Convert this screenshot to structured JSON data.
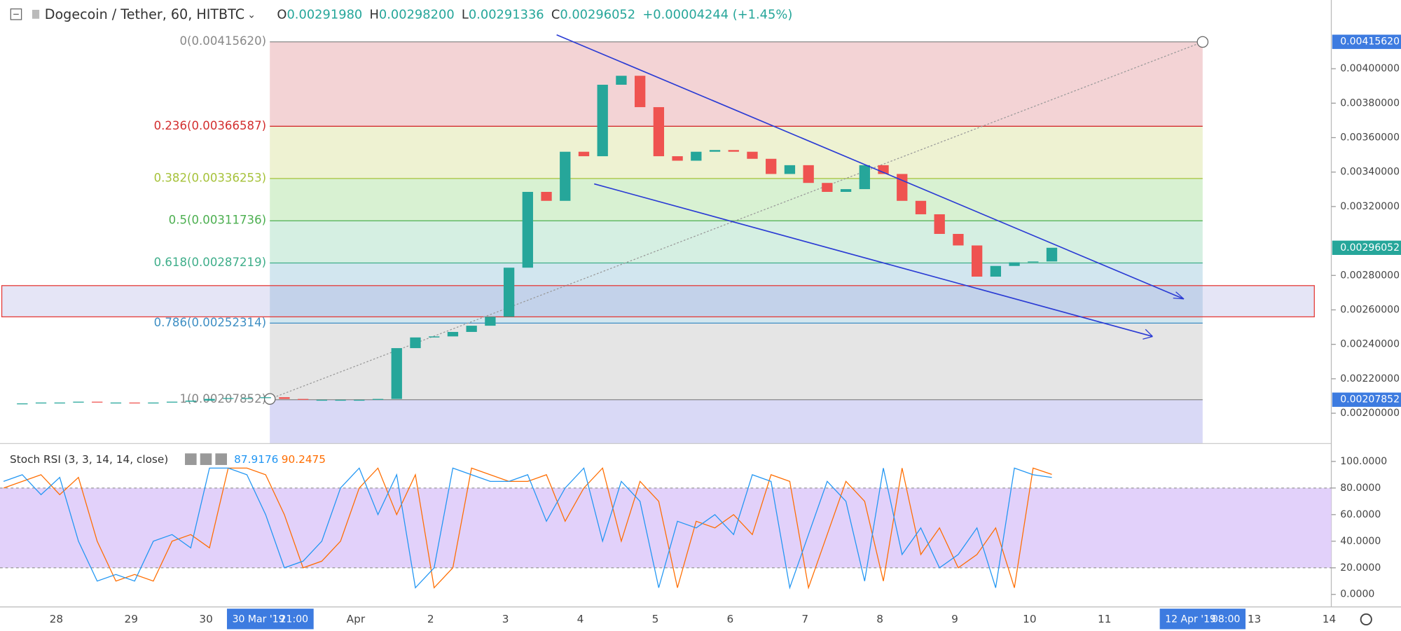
{
  "header": {
    "symbol": "Dogecoin / Tether, 60, HITBTC",
    "ohlc": [
      {
        "label": "O",
        "value": "0.00291980"
      },
      {
        "label": "H",
        "value": "0.00298200"
      },
      {
        "label": "L",
        "value": "0.00291336"
      },
      {
        "label": "C",
        "value": "0.00296052"
      }
    ],
    "change": "+0.00004244 (+1.45%)"
  },
  "price_axis": {
    "ticks": [
      {
        "value": 0.004,
        "label": "0.00400000"
      },
      {
        "value": 0.0038,
        "label": "0.00380000"
      },
      {
        "value": 0.0036,
        "label": "0.00360000"
      },
      {
        "value": 0.0034,
        "label": "0.00340000"
      },
      {
        "value": 0.0032,
        "label": "0.00320000"
      },
      {
        "value": 0.0028,
        "label": "0.00280000"
      },
      {
        "value": 0.0026,
        "label": "0.00260000"
      },
      {
        "value": 0.0024,
        "label": "0.00240000"
      },
      {
        "value": 0.0022,
        "label": "0.00220000"
      },
      {
        "value": 0.002,
        "label": "0.00200000"
      }
    ],
    "badges": [
      {
        "value": 0.0041562,
        "label": "0.00415620",
        "color": "#3d7be0"
      },
      {
        "value": 0.00296052,
        "label": "0.00296052",
        "color": "#26a69a"
      },
      {
        "value": 0.00207852,
        "label": "0.00207852",
        "color": "#3d7be0"
      }
    ]
  },
  "fib_levels": [
    {
      "value": 0.0041562,
      "label": "0(0.00415620)",
      "color": "#888888",
      "fill": "#f3d3d5"
    },
    {
      "value": 0.00366587,
      "label": "0.236(0.00366587)",
      "color": "#d32f2f",
      "fill": "#eef2d2"
    },
    {
      "value": 0.00336253,
      "label": "0.382(0.00336253)",
      "color": "#a6c23a",
      "fill": "#d8f1d2"
    },
    {
      "value": 0.00311736,
      "label": "0.5(0.00311736)",
      "color": "#4caf50",
      "fill": "#d5efe2"
    },
    {
      "value": 0.00287219,
      "label": "0.618(0.00287219)",
      "color": "#3fae8a",
      "fill": "#d2e6ef"
    },
    {
      "value": 0.00252314,
      "label": "0.786(0.00252314)",
      "color": "#3f8fc4",
      "fill": "#e5e5e5"
    },
    {
      "value": 0.00207852,
      "label": "1(0.00207852)",
      "color": "#888888",
      "fill": "#d9d9f6"
    }
  ],
  "closes": [
    0.002052,
    0.002057,
    0.002062,
    0.002062,
    0.002067,
    0.002062,
    0.002062,
    0.002057,
    0.002062,
    0.002067,
    0.002073,
    0.002083,
    0.002088,
    0.002088,
    0.002093,
    0.002083,
    0.002078,
    0.002078,
    0.002078,
    0.002078,
    0.002083,
    0.002378,
    0.00244,
    0.002446,
    0.002472,
    0.002508,
    0.00256,
    0.002845,
    0.003285,
    0.003233,
    0.003518,
    0.003492,
    0.003907,
    0.003959,
    0.003777,
    0.003492,
    0.003466,
    0.003518,
    0.003528,
    0.003518,
    0.003477,
    0.003389,
    0.00344,
    0.003337,
    0.003285,
    0.003301,
    0.00344,
    0.003389,
    0.003233,
    0.003155,
    0.003041,
    0.002974,
    0.002793,
    0.002855,
    0.002876,
    0.002881,
    0.00296052
  ],
  "time_axis": {
    "labels": [
      "28",
      "29",
      "30",
      null,
      "Apr",
      "2",
      "3",
      "4",
      "5",
      "6",
      "7",
      "8",
      "9",
      "10",
      "11",
      null,
      "13",
      "14"
    ],
    "badges": [
      [
        "30 Mar '19",
        "21:00"
      ],
      [
        "12 Apr '19",
        "08:00"
      ]
    ]
  },
  "stoch": {
    "title": "Stoch RSI (3, 3, 14, 14, close)",
    "k_label": "87.9176",
    "d_label": "90.2475",
    "k_color": "#2196f3",
    "d_color": "#ff6d00",
    "ticks": [
      {
        "value": 100,
        "label": "100.0000"
      },
      {
        "value": 80,
        "label": "80.0000"
      },
      {
        "value": 60,
        "label": "60.0000"
      },
      {
        "value": 40,
        "label": "40.0000"
      },
      {
        "value": 20,
        "label": "20.0000"
      },
      {
        "value": 0,
        "label": "0.0000"
      }
    ],
    "k": [
      85,
      90,
      75,
      88,
      40,
      10,
      15,
      10,
      40,
      45,
      35,
      95,
      95,
      90,
      60,
      20,
      25,
      40,
      80,
      95,
      60,
      90,
      5,
      20,
      95,
      90,
      85,
      85,
      90,
      55,
      80,
      95,
      40,
      85,
      70,
      5,
      55,
      50,
      60,
      45,
      90,
      85,
      5,
      45,
      85,
      70,
      10,
      95,
      30,
      50,
      20,
      30,
      50,
      5,
      95,
      90,
      87.9176
    ],
    "d": [
      80,
      85,
      90,
      75,
      88,
      40,
      10,
      15,
      10,
      40,
      45,
      35,
      95,
      95,
      90,
      60,
      20,
      25,
      40,
      80,
      95,
      60,
      90,
      5,
      20,
      95,
      90,
      85,
      85,
      90,
      55,
      80,
      95,
      40,
      85,
      70,
      5,
      55,
      50,
      60,
      45,
      90,
      85,
      5,
      45,
      85,
      70,
      10,
      95,
      30,
      50,
      20,
      30,
      50,
      5,
      95,
      90.2475
    ]
  }
}
